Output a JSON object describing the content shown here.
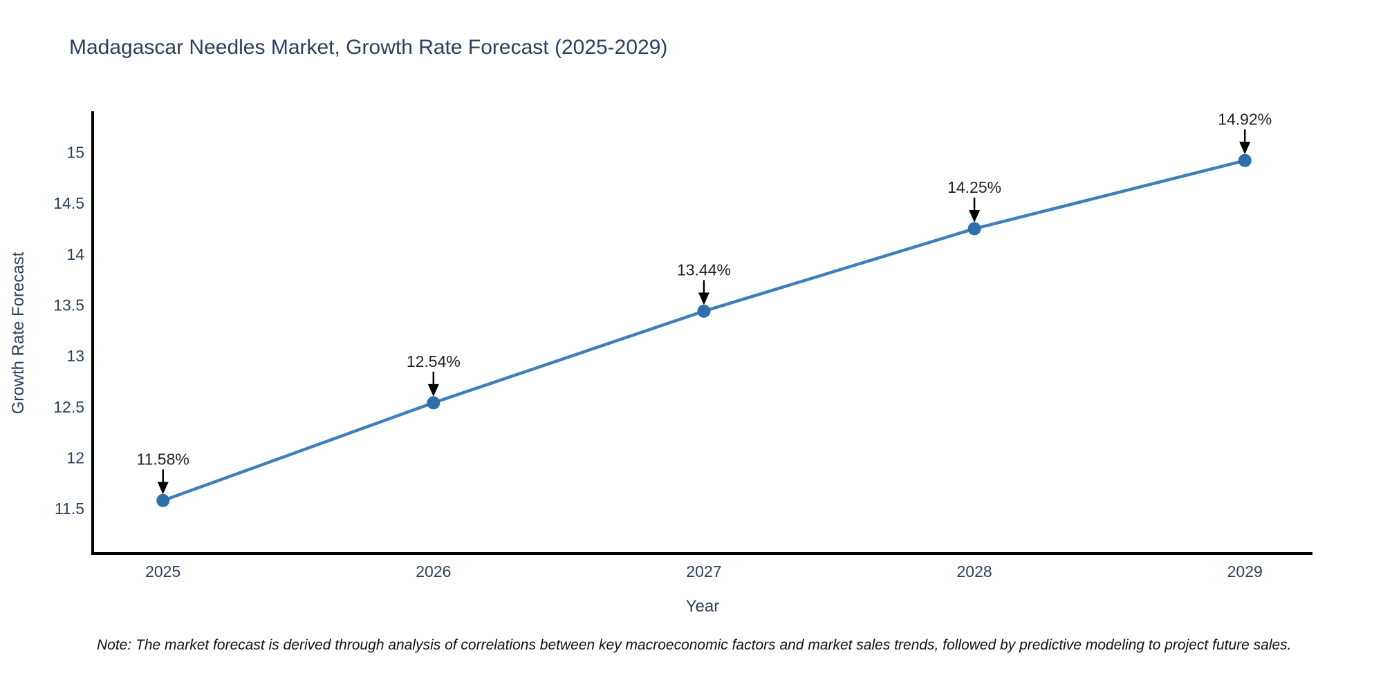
{
  "chart": {
    "title": "Madagascar Needles Market, Growth Rate Forecast (2025-2029)",
    "xlabel": "Year",
    "ylabel": "Growth Rate Forecast",
    "note": "Note: The market forecast is derived through analysis of correlations between key macroeconomic factors and market sales trends, followed by predictive modeling to project future sales."
  },
  "chart_data": {
    "type": "line",
    "title": "Madagascar Needles Market, Growth Rate Forecast (2025-2029)",
    "xlabel": "Year",
    "ylabel": "Growth Rate Forecast",
    "x": [
      2025,
      2026,
      2027,
      2028,
      2029
    ],
    "series": [
      {
        "name": "Growth Rate Forecast",
        "values": [
          11.58,
          12.54,
          13.44,
          14.25,
          14.92
        ]
      }
    ],
    "point_labels": [
      "11.58%",
      "12.54%",
      "13.44%",
      "14.25%",
      "14.92%"
    ],
    "xticks": [
      2025,
      2026,
      2027,
      2028,
      2029
    ],
    "yticks": [
      11.5,
      12,
      12.5,
      13,
      13.5,
      14,
      14.5,
      15
    ],
    "xlim": [
      2024.74,
      2029.25
    ],
    "ylim": [
      11.06,
      15.39
    ],
    "grid": false,
    "legend": false,
    "line_color": "#3f7fba",
    "marker_color": "#2e6fab",
    "axis_color": "#000000",
    "text_color": "#2a3f5f",
    "annotation_color": "#1f1f1f",
    "background_color": "#ffffff"
  }
}
